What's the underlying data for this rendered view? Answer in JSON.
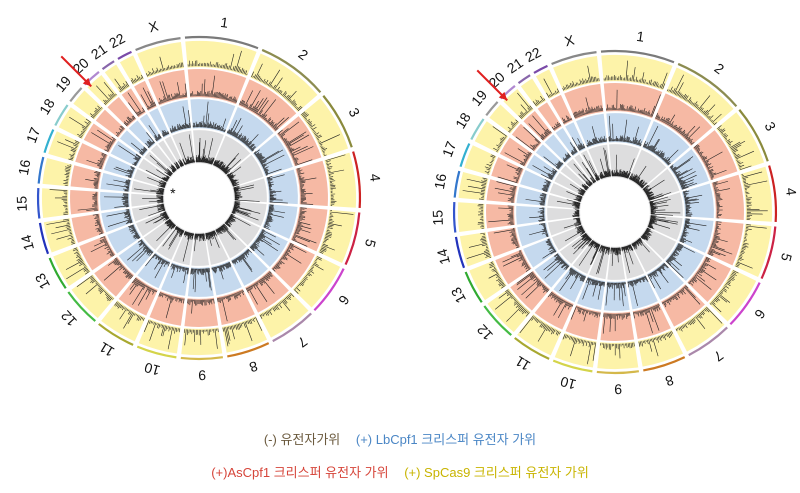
{
  "colors": {
    "neg_ctrl": "#ddddde",
    "lbcpf1": "#c5d9ee",
    "ascpf1": "#f6b9a4",
    "spcas9": "#fdf3a9",
    "ring_gap": "#ffffff",
    "arrow": "#e02020",
    "legend_neg": "#6b5a3e",
    "legend_lb": "#4a86c5",
    "legend_as": "#d6453a",
    "legend_sp": "#c8b400"
  },
  "chart_data": [
    {
      "type": "circos",
      "panel": "left",
      "chromosomes": [
        "1",
        "2",
        "3",
        "4",
        "5",
        "6",
        "7",
        "8",
        "9",
        "10",
        "11",
        "12",
        "13",
        "14",
        "15",
        "16",
        "17",
        "18",
        "19",
        "20",
        "21",
        "22",
        "X"
      ],
      "tracks_inner_to_outer": [
        "(-) 유전자가위",
        "(+) LbCpf1 크리스퍼 유전자 가위",
        "(+)AsCpf1 크리스퍼 유전자 가위",
        "(+) SpCas9 크리스퍼 유전자 가위"
      ],
      "arrow_at_chromosome": "19",
      "asterisk": "*"
    },
    {
      "type": "circos",
      "panel": "right",
      "chromosomes": [
        "1",
        "2",
        "3",
        "4",
        "5",
        "6",
        "7",
        "8",
        "9",
        "10",
        "11",
        "12",
        "13",
        "14",
        "15",
        "16",
        "17",
        "18",
        "19",
        "20",
        "21",
        "22",
        "X"
      ],
      "tracks_inner_to_outer": [
        "(-) 유전자가위",
        "(+) LbCpf1 크리스퍼 유전자 가위",
        "(+)AsCpf1 크리스퍼 유전자 가위",
        "(+) SpCas9 크리스퍼 유전자 가위"
      ],
      "arrow_at_chromosome": "19"
    }
  ],
  "chromosome_sizes_mb": [
    249,
    243,
    198,
    191,
    181,
    171,
    159,
    146,
    141,
    136,
    135,
    133,
    115,
    107,
    102,
    90,
    83,
    80,
    59,
    64,
    47,
    51,
    156
  ],
  "chromosome_colors": [
    "#7a7a7a",
    "#8c8c50",
    "#8a8a3c",
    "#cc2222",
    "#cc2244",
    "#cc44cc",
    "#aa88aa",
    "#cc7a22",
    "#d4b84a",
    "#d4d44a",
    "#a8a830",
    "#44bb44",
    "#30aa30",
    "#2233bb",
    "#3355cc",
    "#3377cc",
    "#33b0d0",
    "#88cccc",
    "#999999",
    "#b088d0",
    "#8866aa",
    "#7a4aa8",
    "#888888"
  ],
  "legend": {
    "neg": "(-) 유전자가위",
    "lb": "(+) LbCpf1 크리스퍼 유전자 가위",
    "as": "(+)AsCpf1 크리스퍼 유전자 가위",
    "sp": "(+) SpCas9 크리스퍼 유전자 가위"
  }
}
